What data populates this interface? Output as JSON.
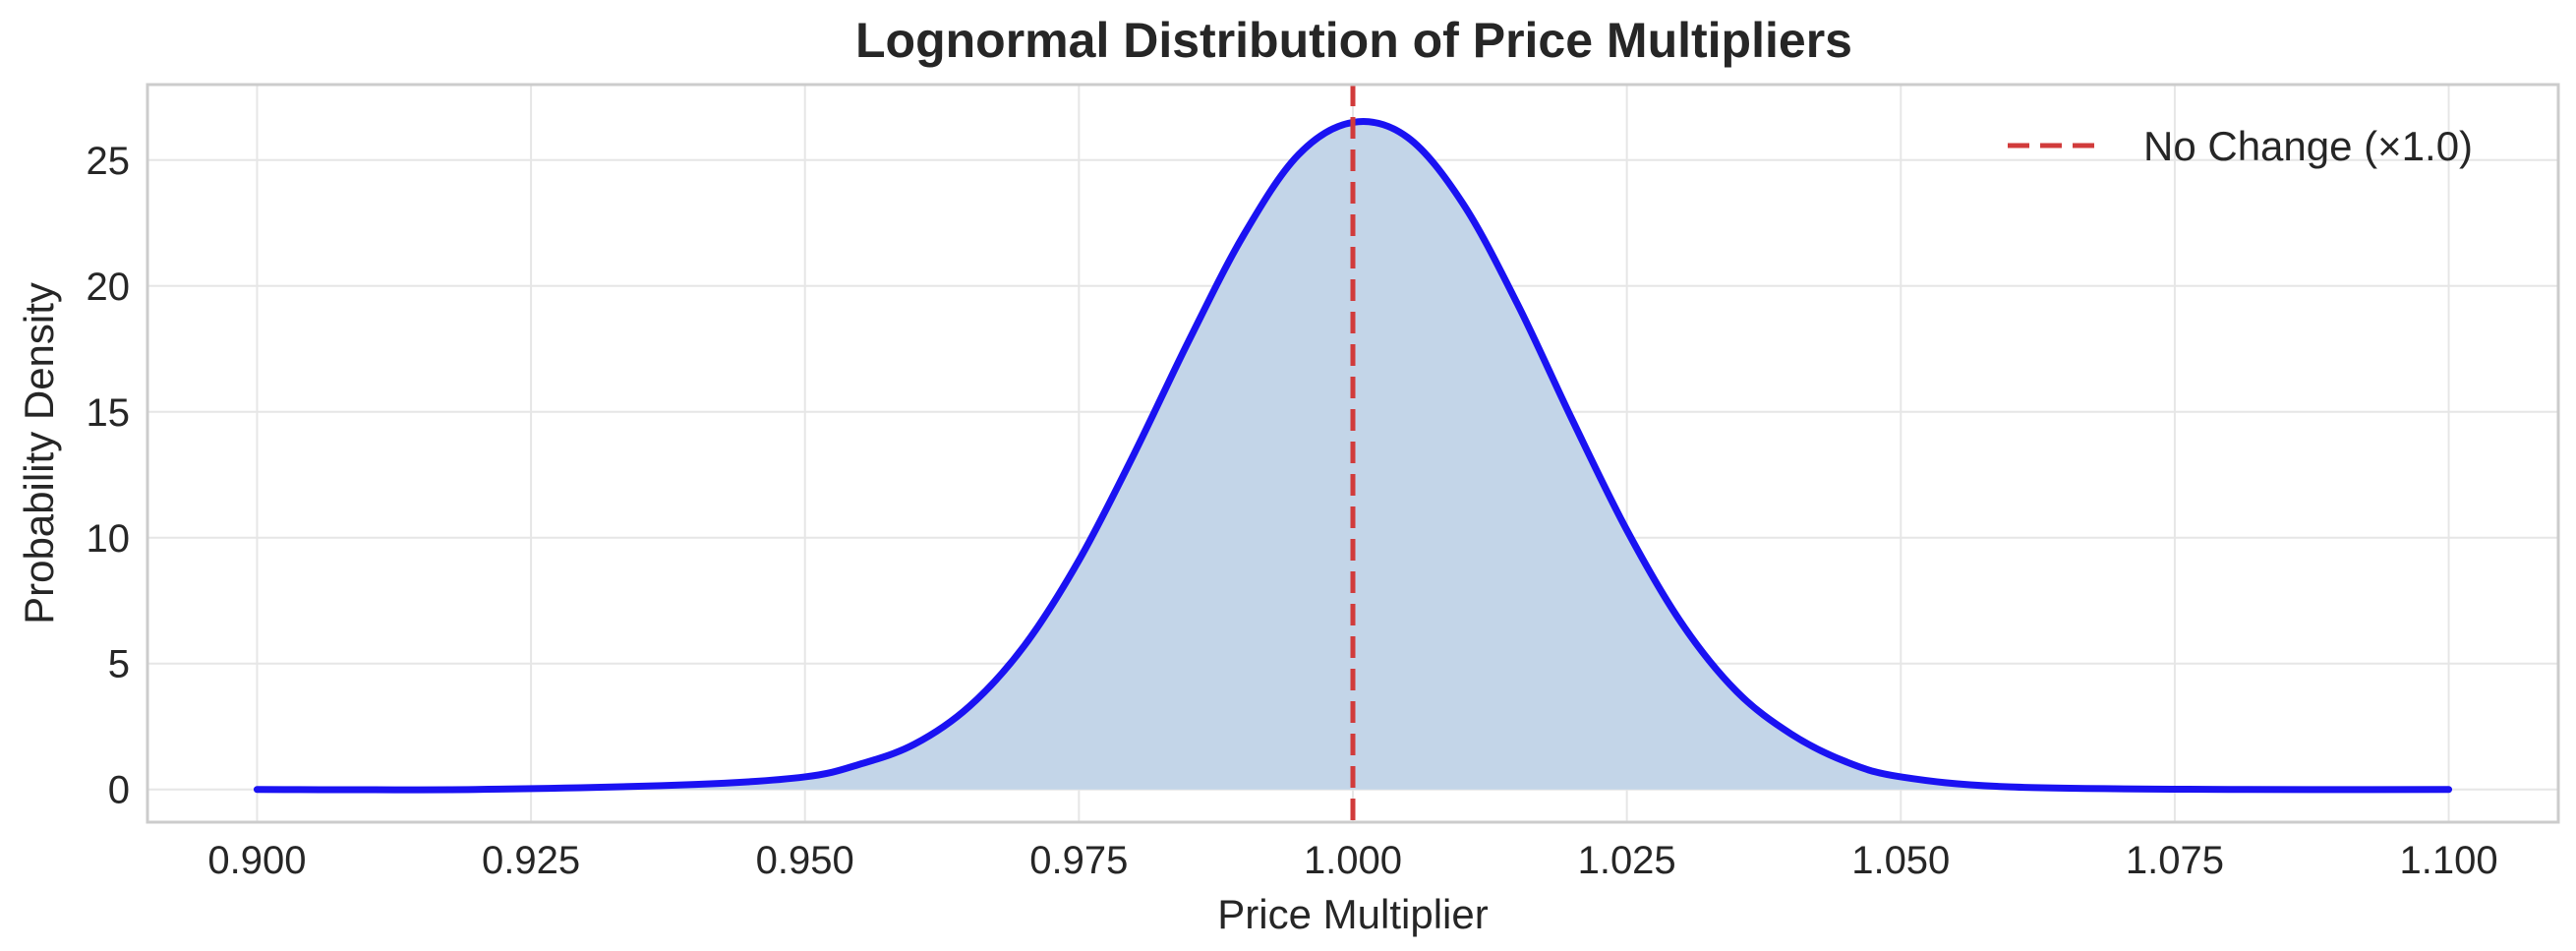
{
  "chart_data": {
    "type": "area",
    "title": "Lognormal Distribution of Price Multipliers",
    "xlabel": "Price Multiplier",
    "ylabel": "Probability Density",
    "xlim": [
      0.89,
      1.11
    ],
    "ylim": [
      -1.3,
      28.0
    ],
    "x_ticks": [
      0.9,
      0.925,
      0.95,
      0.975,
      1.0,
      1.025,
      1.05,
      1.075,
      1.1
    ],
    "x_tick_labels": [
      "0.900",
      "0.925",
      "0.950",
      "0.975",
      "1.000",
      "1.025",
      "1.050",
      "1.075",
      "1.100"
    ],
    "y_ticks": [
      0,
      5,
      10,
      15,
      20,
      25
    ],
    "y_tick_labels": [
      "0",
      "5",
      "10",
      "15",
      "20",
      "25"
    ],
    "grid": true,
    "legend_position": "top-right",
    "series": [
      {
        "kind": "line-with-fill",
        "color": "#1a12f2",
        "fill_color": "#c3d5e8",
        "x": [
          0.9,
          0.92,
          0.94,
          0.95,
          0.955,
          0.96,
          0.965,
          0.97,
          0.975,
          0.98,
          0.985,
          0.99,
          0.995,
          1.0,
          1.005,
          1.01,
          1.015,
          1.02,
          1.025,
          1.03,
          1.035,
          1.04,
          1.045,
          1.05,
          1.06,
          1.08,
          1.1
        ],
        "y": [
          0.0,
          0.0,
          0.2,
          0.5,
          1.0,
          1.8,
          3.3,
          5.7,
          9.1,
          13.3,
          17.8,
          22.0,
          25.2,
          26.5,
          25.9,
          23.3,
          19.3,
          14.7,
          10.3,
          6.6,
          3.9,
          2.2,
          1.1,
          0.5,
          0.1,
          0.0,
          0.0
        ]
      }
    ],
    "reference_line": {
      "x": 1.0,
      "color": "#d13b3b",
      "style": "dashed",
      "label": "No Change (×1.0)"
    }
  },
  "colors": {
    "grid": "#e6e6e6",
    "frame": "#cccccc",
    "text": "#262626"
  }
}
